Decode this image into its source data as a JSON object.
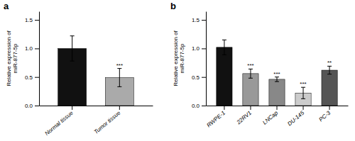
{
  "chart_data": [
    {
      "type": "bar",
      "title": "a",
      "categories": [
        "Normal tissue",
        "Tumor tissue"
      ],
      "values": [
        1.0,
        0.49
      ],
      "errors": [
        0.22,
        0.16
      ],
      "colors": [
        "#111111",
        "#aaaaaa"
      ],
      "y_label": "Relative expression of\nmiR-877-5p",
      "ylim": [
        0,
        1.65
      ],
      "yticks": [
        {
          "value": 0.0,
          "label": "0.0"
        },
        0.5,
        {
          "value": 1.0,
          "label": "1.0"
        },
        1.5
      ],
      "annotations": [
        {
          "text": "***",
          "x": "Tumor tissue"
        }
      ]
    },
    {
      "type": "bar",
      "title": "b",
      "categories": [
        "RWPE-1",
        "22RV1",
        "LNCap",
        "DU-145",
        "PC-3"
      ],
      "values": [
        1.02,
        0.56,
        0.46,
        0.22,
        0.62
      ],
      "errors": [
        0.13,
        0.08,
        0.04,
        0.1,
        0.07
      ],
      "colors": [
        "#111111",
        "#999999",
        "#888888",
        "#cccccc",
        "#555555"
      ],
      "y_label": "Relative expression of\nmiR-877-5p",
      "ylim": [
        0,
        1.65
      ],
      "yticks": [
        {
          "value": 0.0,
          "label": "0.0"
        },
        0.5,
        {
          "value": 1.0,
          "label": "1.0"
        },
        1.5
      ],
      "annotations": [
        {
          "text": "***",
          "x": "22RV1"
        },
        {
          "text": "***",
          "x": "LNCap"
        },
        {
          "text": "***",
          "x": "DU-145"
        },
        {
          "text": "**",
          "x": "PC-3"
        }
      ]
    }
  ]
}
